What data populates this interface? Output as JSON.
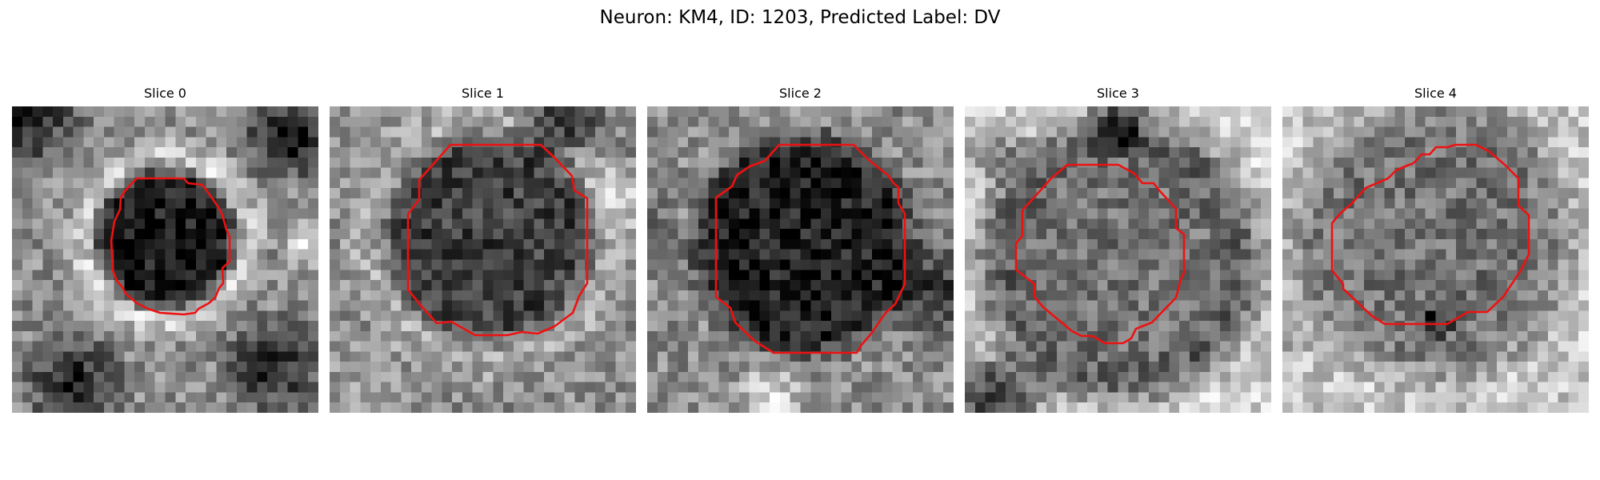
{
  "figure": {
    "title": "Neuron: KM4, ID: 1203, Predicted Label: DV",
    "contour_color": "#ee1111",
    "colormap": "gray",
    "grid_size": 30
  },
  "slices": [
    {
      "label": "Slice 0"
    },
    {
      "label": "Slice 1"
    },
    {
      "label": "Slice 2"
    },
    {
      "label": "Slice 3"
    },
    {
      "label": "Slice 4"
    }
  ]
}
